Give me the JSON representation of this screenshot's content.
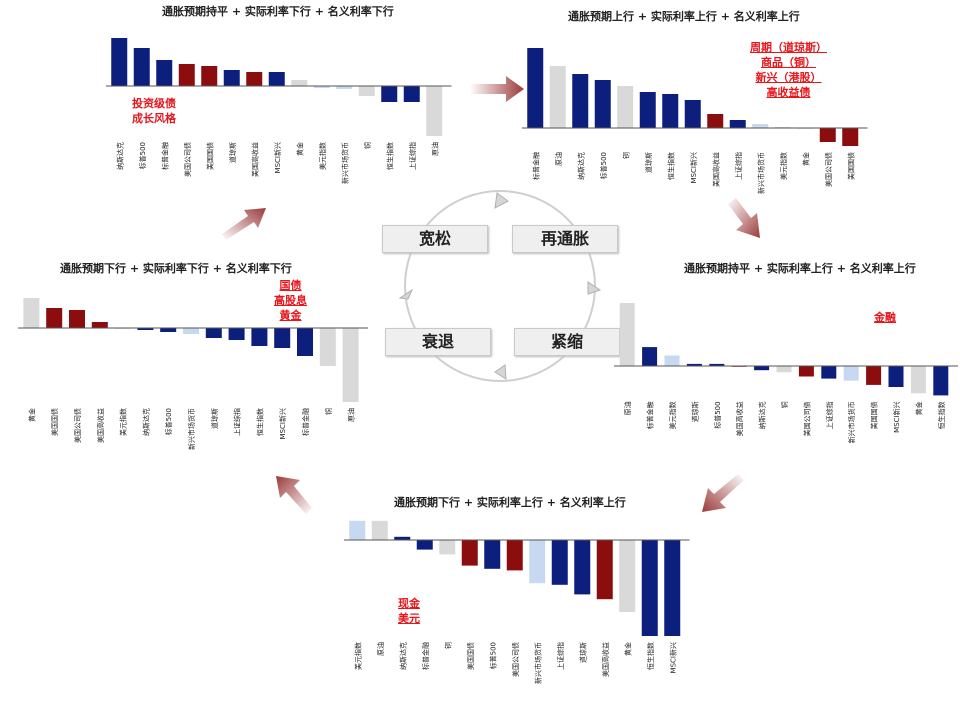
{
  "colors": {
    "navy": "#0d1f7d",
    "darkred": "#8b0d0d",
    "grey": "#d9d9d9",
    "lightblue": "#c6d9f1",
    "accent_red": "#e8161b",
    "arrow": "#9b3a3a"
  },
  "phases": [
    "宽松",
    "再通胀",
    "衰退",
    "紧缩"
  ],
  "chart_data": [
    {
      "id": "top-left",
      "type": "bar",
      "title": "通胀预期持平 + 实际利率下行 + 名义利率下行",
      "callout": [
        "投资级债",
        "成长风格"
      ],
      "categories": [
        "纳斯达克",
        "标普500",
        "标普金融",
        "美国公司债",
        "美国国债",
        "道琼斯",
        "美国高收益",
        "MSCI新兴",
        "黄金",
        "美元指数",
        "新兴市场货币",
        "铜",
        "恒生指数",
        "上证综指",
        "原油"
      ],
      "values": [
        24,
        19,
        13,
        11,
        10,
        8,
        7,
        7,
        3,
        -1,
        -1.5,
        -5,
        -8,
        -8,
        -25
      ],
      "colors": [
        "navy",
        "navy",
        "navy",
        "darkred",
        "darkred",
        "navy",
        "darkred",
        "navy",
        "grey",
        "lightblue",
        "lightblue",
        "grey",
        "navy",
        "navy",
        "grey"
      ]
    },
    {
      "id": "top-right",
      "type": "bar",
      "title": "通胀预期上行 + 实际利率上行 + 名义利率上行",
      "callout": [
        "周期（道琼斯）",
        "商品（铜）",
        "新兴（港股）",
        "高收益债"
      ],
      "categories": [
        "标普金融",
        "原油",
        "纳斯达克",
        "标普500",
        "铜",
        "道琼斯",
        "恒生指数",
        "MSCI新兴",
        "美国高收益",
        "上证综指",
        "新兴市场货币",
        "美元指数",
        "黄金",
        "美国公司债",
        "美国国债"
      ],
      "values": [
        40,
        31,
        27,
        24,
        21,
        18,
        17,
        14,
        7,
        4,
        2,
        0.5,
        0,
        -7,
        -9
      ],
      "colors": [
        "navy",
        "grey",
        "navy",
        "navy",
        "grey",
        "navy",
        "navy",
        "navy",
        "darkred",
        "navy",
        "lightblue",
        "lightblue",
        "grey",
        "darkred",
        "darkred"
      ]
    },
    {
      "id": "mid-left",
      "type": "bar",
      "title": "通胀预期下行 + 实际利率下行 + 名义利率下行",
      "callout": [
        "国债",
        "高股息",
        "黄金"
      ],
      "categories": [
        "黄金",
        "美国国债",
        "美国公司债",
        "美国高收益",
        "美元指数",
        "纳斯达克",
        "标普500",
        "新兴市场货币",
        "道琼斯",
        "上证综指",
        "恒生指数",
        "MSCI新兴",
        "标普金融",
        "铜",
        "原油"
      ],
      "values": [
        15,
        10,
        9,
        3,
        0,
        -1,
        -2,
        -3,
        -5,
        -6,
        -9,
        -10,
        -14,
        -19,
        -37
      ],
      "colors": [
        "grey",
        "darkred",
        "darkred",
        "darkred",
        "lightblue",
        "navy",
        "navy",
        "lightblue",
        "navy",
        "navy",
        "navy",
        "navy",
        "navy",
        "grey",
        "grey"
      ]
    },
    {
      "id": "mid-right",
      "type": "bar",
      "title": "通胀预期持平 + 实际利率上行 + 名义利率上行",
      "callout": [
        "金融"
      ],
      "categories": [
        "原油",
        "标普金融",
        "美元指数",
        "道琼斯",
        "标普500",
        "美国高收益",
        "纳斯达克",
        "铜",
        "美国公司债",
        "上证综指",
        "新兴市场货币",
        "美国国债",
        "MSCI新兴",
        "黄金",
        "恒生指数"
      ],
      "values": [
        30,
        9,
        5,
        1,
        1,
        0,
        -2,
        -3,
        -5,
        -6,
        -7,
        -9,
        -10,
        -13,
        -14
      ],
      "colors": [
        "grey",
        "navy",
        "lightblue",
        "navy",
        "navy",
        "darkred",
        "navy",
        "grey",
        "darkred",
        "navy",
        "lightblue",
        "darkred",
        "navy",
        "grey",
        "navy"
      ]
    },
    {
      "id": "bottom",
      "type": "bar",
      "title": "通胀预期下行 + 实际利率上行 + 名义利率上行",
      "callout": [
        "现金",
        "美元"
      ],
      "categories": [
        "美元指数",
        "原油",
        "纳斯达克",
        "标普金融",
        "铜",
        "美国国债",
        "标普500",
        "美国公司债",
        "新兴市场货币",
        "上证综指",
        "道琼斯",
        "美国高收益",
        "黄金",
        "恒生指数",
        "MSCI新兴"
      ],
      "values": [
        12,
        12,
        2,
        -6,
        -9,
        -16,
        -18,
        -19,
        -27,
        -28,
        -34,
        -37,
        -45,
        -60,
        -60
      ],
      "colors": [
        "lightblue",
        "grey",
        "navy",
        "navy",
        "grey",
        "darkred",
        "navy",
        "darkred",
        "lightblue",
        "navy",
        "navy",
        "darkred",
        "grey",
        "navy",
        "navy"
      ]
    }
  ]
}
